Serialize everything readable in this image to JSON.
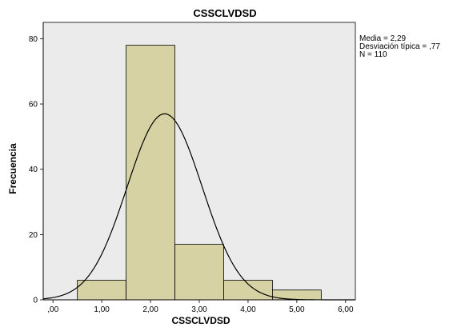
{
  "chart_data": {
    "type": "bar",
    "title": "CSSCLVDSD",
    "xlabel": "CSSCLVDSD",
    "ylabel": "Frecuencia",
    "xlim": [
      -0.2,
      6.2
    ],
    "ylim": [
      0,
      85
    ],
    "x_ticks": [
      {
        "value": 0,
        "label": ",00"
      },
      {
        "value": 1,
        "label": "1,00"
      },
      {
        "value": 2,
        "label": "2,00"
      },
      {
        "value": 3,
        "label": "3,00"
      },
      {
        "value": 4,
        "label": "4,00"
      },
      {
        "value": 5,
        "label": "5,00"
      },
      {
        "value": 6,
        "label": "6,00"
      }
    ],
    "y_ticks": [
      {
        "value": 0,
        "label": "0"
      },
      {
        "value": 20,
        "label": "20"
      },
      {
        "value": 40,
        "label": "40"
      },
      {
        "value": 60,
        "label": "60"
      },
      {
        "value": 80,
        "label": "80"
      }
    ],
    "bins": [
      {
        "x0": 0.5,
        "x1": 1.5,
        "count": 6
      },
      {
        "x0": 1.5,
        "x1": 2.5,
        "count": 78
      },
      {
        "x0": 2.5,
        "x1": 3.5,
        "count": 17
      },
      {
        "x0": 3.5,
        "x1": 4.5,
        "count": 6
      },
      {
        "x0": 4.5,
        "x1": 5.5,
        "count": 3
      }
    ],
    "normal_curve": {
      "mean": 2.29,
      "sd": 0.77,
      "n": 110,
      "bin_width": 1
    },
    "stats_lines": [
      "Media = 2,29",
      "Desviación típica = ,77",
      "N = 110"
    ],
    "grid": false,
    "colors": {
      "bar_fill": "#d6d2a3",
      "bar_stroke": "#000000",
      "plot_background": "#ebebeb",
      "curve": "#000000"
    }
  }
}
